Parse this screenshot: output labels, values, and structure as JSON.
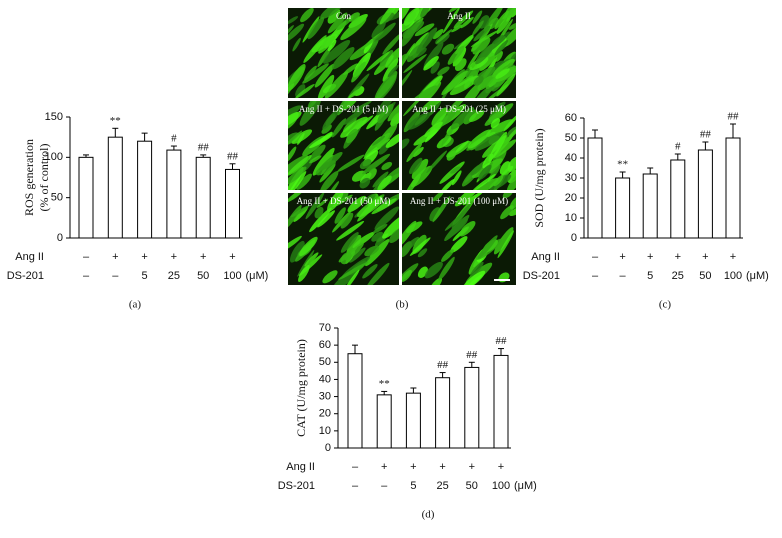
{
  "chart_data": [
    {
      "type": "bar",
      "panel_label": "(a)",
      "y_label": [
        "ROS generation",
        "(% of control)"
      ],
      "row_labels": [
        "Ang II",
        "DS-201"
      ],
      "rows": [
        [
          "–",
          "+",
          "+",
          "+",
          "+",
          "+"
        ],
        [
          "–",
          "–",
          "5",
          "25",
          "50",
          "100"
        ]
      ],
      "unit": "(μM)",
      "values": [
        100,
        125,
        120,
        109,
        100,
        85
      ],
      "errors": [
        3,
        11,
        10,
        5,
        3,
        7
      ],
      "annotations": [
        null,
        "**",
        null,
        "#",
        "##",
        "##"
      ],
      "color": "#ffffff",
      "ylim": [
        0,
        150
      ],
      "yticks": [
        0,
        50,
        100,
        150
      ]
    },
    {
      "type": "bar",
      "panel_label": "(c)",
      "y_label": [
        "SOD (U/mg protein)"
      ],
      "row_labels": [
        "Ang II",
        "DS-201"
      ],
      "rows": [
        [
          "–",
          "+",
          "+",
          "+",
          "+",
          "+"
        ],
        [
          "–",
          "–",
          "5",
          "25",
          "50",
          "100"
        ]
      ],
      "unit": "(μM)",
      "values": [
        50,
        30,
        32,
        39,
        44,
        50
      ],
      "errors": [
        4,
        3,
        3,
        3,
        4,
        7
      ],
      "annotations": [
        null,
        "**",
        null,
        "#",
        "##",
        "##"
      ],
      "color": "#ffffff",
      "ylim": [
        0,
        60
      ],
      "yticks": [
        0,
        10,
        20,
        30,
        40,
        50,
        60
      ]
    },
    {
      "type": "bar",
      "panel_label": "(d)",
      "y_label": [
        "CAT (U/mg protein)"
      ],
      "row_labels": [
        "Ang II",
        "DS-201"
      ],
      "rows": [
        [
          "–",
          "+",
          "+",
          "+",
          "+",
          "+"
        ],
        [
          "–",
          "–",
          "5",
          "25",
          "50",
          "100"
        ]
      ],
      "unit": "(μM)",
      "values": [
        55,
        31,
        32,
        41,
        47,
        54
      ],
      "errors": [
        5,
        2,
        3,
        3,
        3,
        4
      ],
      "annotations": [
        null,
        "**",
        null,
        "##",
        "##",
        "##"
      ],
      "color": "#ffffff",
      "ylim": [
        0,
        70
      ],
      "yticks": [
        0,
        10,
        20,
        30,
        40,
        50,
        60,
        70
      ]
    }
  ],
  "micrographs": {
    "panel_label": "(b)",
    "labels": [
      "Con",
      "Ang II",
      "Ang II + DS-201 (5 μM)",
      "Ang II + DS-201 (25 μM)",
      "Ang II + DS-201 (50 μM)",
      "Ang II + DS-201 (100 μM)"
    ]
  }
}
